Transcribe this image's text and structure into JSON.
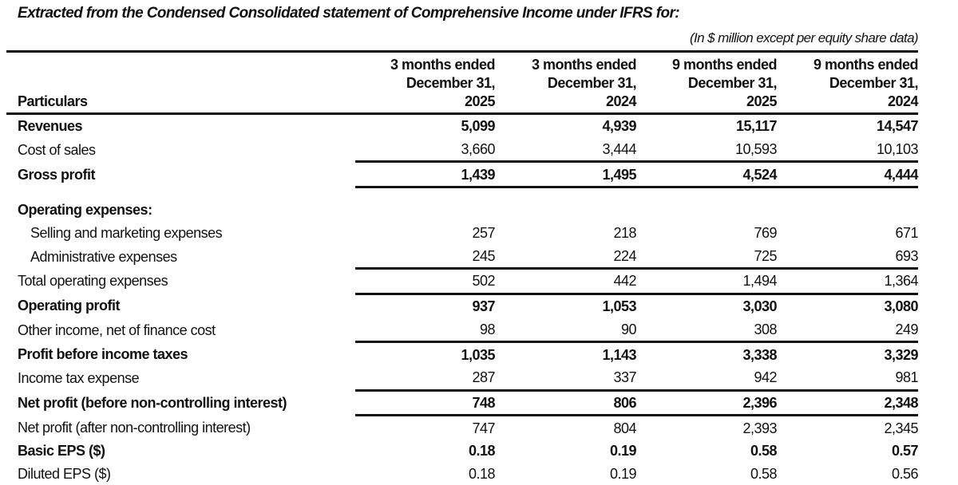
{
  "title": "Extracted from the Condensed Consolidated statement of Comprehensive Income under IFRS for:",
  "units_note": "(In $ million except per equity share data)",
  "header": {
    "particulars": "Particulars",
    "columns": [
      {
        "line1": "3 months ended",
        "line2": "December 31,",
        "line3": "2025"
      },
      {
        "line1": "3 months ended",
        "line2": "December 31,",
        "line3": "2024"
      },
      {
        "line1": "9 months ended",
        "line2": "December 31,",
        "line3": "2025"
      },
      {
        "line1": "9 months ended",
        "line2": "December 31,",
        "line3": "2024"
      }
    ]
  },
  "rows": [
    {
      "label": "Revenues",
      "values": [
        "5,099",
        "4,939",
        "15,117",
        "14,547"
      ]
    },
    {
      "label": "Cost of sales",
      "values": [
        "3,660",
        "3,444",
        "10,593",
        "10,103"
      ]
    },
    {
      "label": "Gross profit",
      "values": [
        "1,439",
        "1,495",
        "4,524",
        "4,444"
      ]
    },
    {
      "label": "Operating expenses:",
      "values": []
    },
    {
      "label": "Selling and marketing expenses",
      "values": [
        "257",
        "218",
        "769",
        "671"
      ]
    },
    {
      "label": "Administrative expenses",
      "values": [
        "245",
        "224",
        "725",
        "693"
      ]
    },
    {
      "label": "Total operating expenses",
      "values": [
        "502",
        "442",
        "1,494",
        "1,364"
      ]
    },
    {
      "label": "Operating profit",
      "values": [
        "937",
        "1,053",
        "3,030",
        "3,080"
      ]
    },
    {
      "label": "Other income, net of finance cost",
      "values": [
        "98",
        "90",
        "308",
        "249"
      ]
    },
    {
      "label": "Profit before income taxes",
      "values": [
        "1,035",
        "1,143",
        "3,338",
        "3,329"
      ]
    },
    {
      "label": "Income tax expense",
      "values": [
        "287",
        "337",
        "942",
        "981"
      ]
    },
    {
      "label": "Net profit (before non-controlling interest)",
      "values": [
        "748",
        "806",
        "2,396",
        "2,348"
      ]
    },
    {
      "label": "Net profit (after non-controlling interest)",
      "values": [
        "747",
        "804",
        "2,393",
        "2,345"
      ]
    },
    {
      "label": "Basic EPS ($)",
      "values": [
        "0.18",
        "0.19",
        "0.58",
        "0.57"
      ]
    },
    {
      "label": "Diluted EPS ($)",
      "values": [
        "0.18",
        "0.19",
        "0.58",
        "0.56"
      ]
    }
  ]
}
